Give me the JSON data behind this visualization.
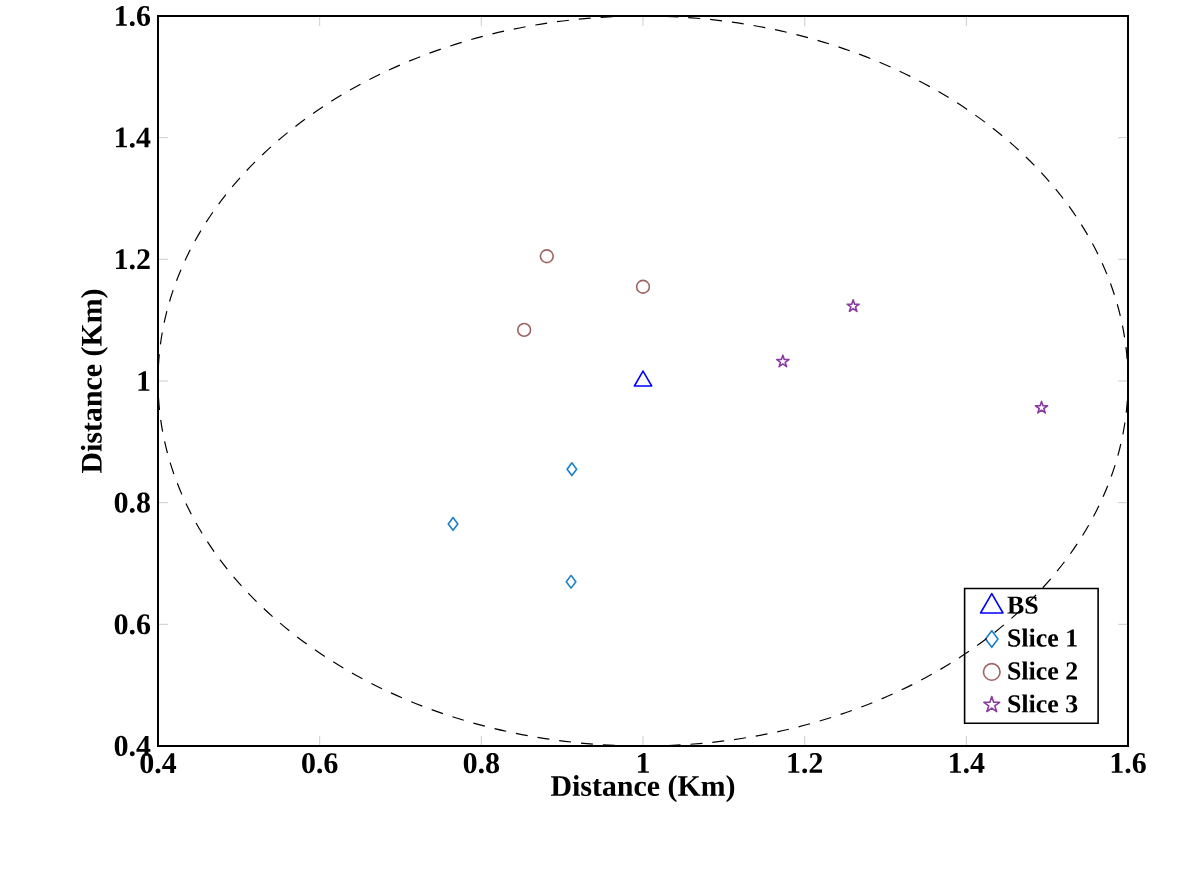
{
  "chart_data": {
    "type": "scatter",
    "xlabel": "Distance (Km)",
    "ylabel": "Distance (Km)",
    "xlim": [
      0.4,
      1.6
    ],
    "ylim": [
      0.4,
      1.6
    ],
    "xticks": [
      0.4,
      0.6,
      0.8,
      1,
      1.2,
      1.4,
      1.6
    ],
    "yticks": [
      0.4,
      0.6,
      0.8,
      1,
      1.2,
      1.4,
      1.6
    ],
    "grid": false,
    "legend": "bottom right",
    "series": [
      {
        "name": "BS",
        "color": "#0000ff",
        "marker": "triangle",
        "x": [
          1.0
        ],
        "values": [
          1.0
        ]
      },
      {
        "name": "Slice 1",
        "color": "#1a80c8",
        "marker": "diamond",
        "x": [
          0.765,
          0.912,
          0.911
        ],
        "values": [
          0.765,
          0.855,
          0.67
        ]
      },
      {
        "name": "Slice 2",
        "color": "#a06262",
        "marker": "circle",
        "x": [
          0.853,
          0.881,
          1.0
        ],
        "values": [
          1.084,
          1.205,
          1.155
        ]
      },
      {
        "name": "Slice 3",
        "color": "#8a3aa0",
        "marker": "star",
        "x": [
          1.173,
          1.26,
          1.493
        ],
        "values": [
          1.032,
          1.123,
          0.956
        ]
      }
    ]
  }
}
